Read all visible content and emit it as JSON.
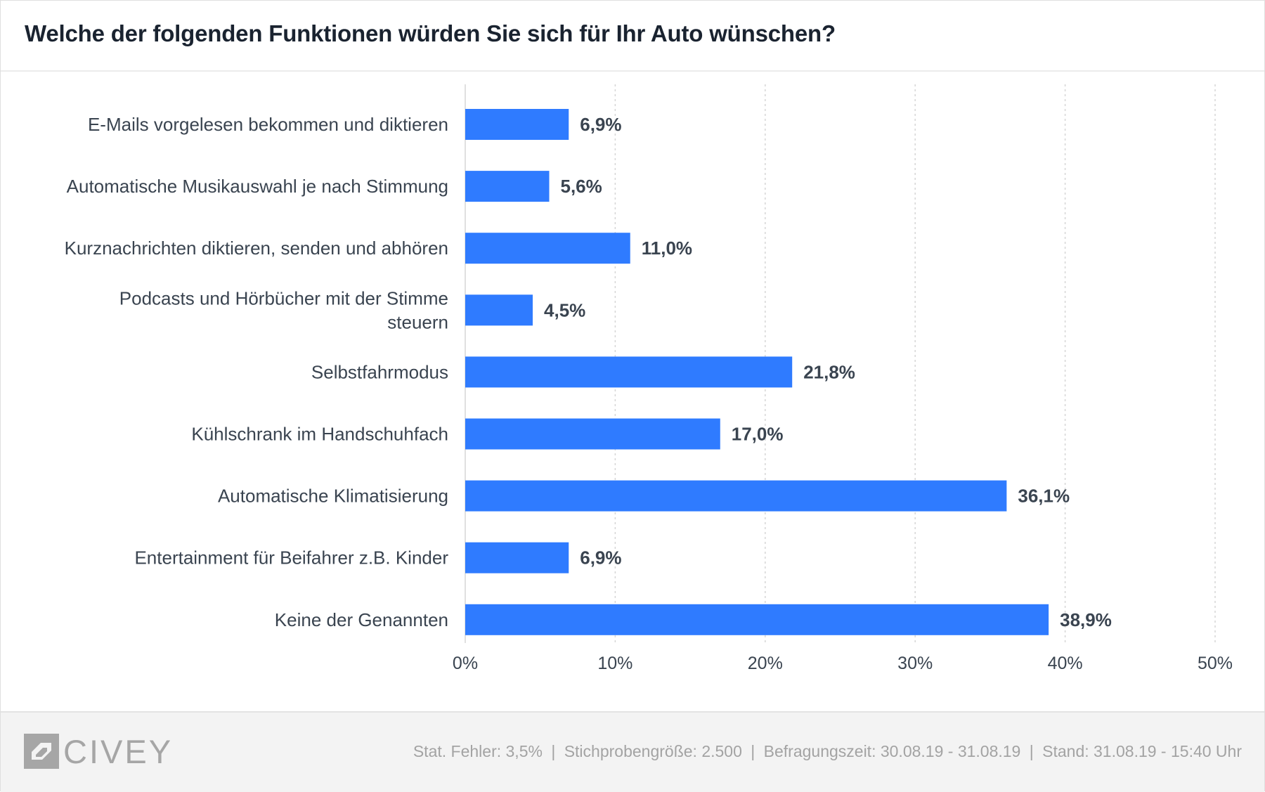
{
  "title": "Welche der folgenden Funktionen würden Sie sich für Ihr Auto wünschen?",
  "colors": {
    "bar": "#2f7bff",
    "text": "#1f2a36",
    "label": "#3a4450",
    "grid": "#d6d6d6"
  },
  "chart_data": {
    "type": "bar",
    "orientation": "horizontal",
    "categories": [
      [
        "E-Mails vorgelesen bekommen und diktieren"
      ],
      [
        "Automatische Musikauswahl je nach Stimmung"
      ],
      [
        "Kurznachrichten diktieren, senden und abhören"
      ],
      [
        "Podcasts und Hörbücher mit der Stimme",
        "steuern"
      ],
      [
        "Selbstfahrmodus"
      ],
      [
        "Kühlschrank im Handschuhfach"
      ],
      [
        "Automatische Klimatisierung"
      ],
      [
        "Entertainment für Beifahrer z.B. Kinder"
      ],
      [
        "Keine der Genannten"
      ]
    ],
    "values": [
      6.9,
      5.6,
      11.0,
      4.5,
      21.8,
      17.0,
      36.1,
      6.9,
      38.9
    ],
    "value_labels": [
      "6,9%",
      "5,6%",
      "11,0%",
      "4,5%",
      "21,8%",
      "17,0%",
      "36,1%",
      "6,9%",
      "38,9%"
    ],
    "xlim": [
      0,
      50
    ],
    "xticks": [
      0,
      10,
      20,
      30,
      40,
      50
    ],
    "xtick_labels": [
      "0%",
      "10%",
      "20%",
      "30%",
      "40%",
      "50%"
    ],
    "grid": true
  },
  "footer": {
    "logo_text": "CIVEY",
    "logo_icon": "civey-logo-icon",
    "stat_error": "Stat. Fehler: 3,5%",
    "sample_size": "Stichprobengröße: 2.500",
    "survey_period": "Befragungszeit: 30.08.19 - 31.08.19",
    "as_of": "Stand: 31.08.19 - 15:40 Uhr",
    "separator": "|"
  }
}
